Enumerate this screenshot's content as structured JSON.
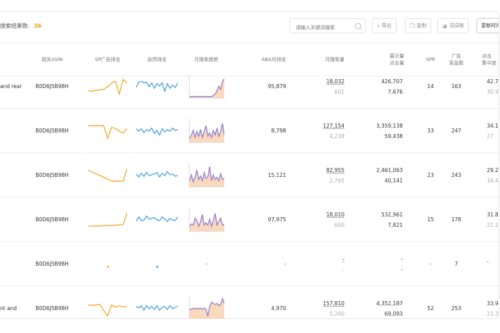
{
  "toolbar": {
    "count_label": "搜索结果数:",
    "count_value": "36",
    "search_placeholder": "请输入关键词搜索",
    "export_label": "导出",
    "copy_label": "复制",
    "keyword_root_label": "词词根",
    "update_label": "更新时间"
  },
  "columns": {
    "asin": "相关ASIN",
    "sp_rank": "SP广告排名",
    "natural_rank": "自然排名",
    "monthly_trend": "月搜索趋势",
    "aba_rank": "ABA月排名",
    "monthly_search": "月搜索量",
    "impressions_1": "展示量",
    "impressions_2": "点击量",
    "spr": "SPR",
    "ad_products_1": "广告",
    "ad_products_2": "竞品数",
    "click_share_1": "点击",
    "click_share_2": "集中度"
  },
  "colors": {
    "accent": "#f39c12",
    "sp_line": "#f5a623",
    "natural_line": "#4a9fe0",
    "trend_fill": "#fbd9bd",
    "trend_line": "#8c7fd6"
  },
  "rows": [
    {
      "name": "and rear",
      "asin": "B0D6J5B98H",
      "sp_series": [
        0.72,
        0.75,
        0.7,
        0.68,
        0.65,
        0.5,
        0.3,
        0.2,
        0.9,
        0.1,
        0.3
      ],
      "natural_series": [
        0.55,
        0.2,
        0.15,
        0.25,
        0.2,
        0.5,
        0.25,
        0.6,
        0.3,
        0.45,
        0.25,
        0.8,
        0.3,
        0.6,
        0.4,
        0.55,
        0.25
      ],
      "trend_series": [
        0.95,
        0.95,
        0.95,
        0.95,
        0.95,
        0.95,
        0.95,
        0.95,
        0.95,
        0.95,
        0.95,
        0.95,
        0.95,
        0.9,
        0.85,
        0.7,
        0.5,
        0.65,
        0.3,
        0.2
      ],
      "aba_rank": "95,879",
      "monthly_search_main": "18,032",
      "monthly_search_sub": "601",
      "impressions": "426,707",
      "clicks": "7,676",
      "spr": "14",
      "ad_products": "163",
      "click_share_a": "42.7",
      "click_share_b": "30.9"
    },
    {
      "name": "",
      "asin": "B0D6J5B98H",
      "sp_series": [
        0.2,
        0.2,
        0.2,
        0.2,
        0.2,
        0.9,
        0.3,
        0.35,
        0.5,
        0.6,
        0.35
      ],
      "natural_series": [
        0.35,
        0.5,
        0.35,
        0.6,
        0.4,
        0.5,
        0.3,
        0.65,
        0.45,
        0.75,
        0.35,
        0.55,
        0.4,
        0.5,
        0.3,
        0.45,
        0.4
      ],
      "trend_series": [
        0.85,
        0.7,
        0.5,
        0.8,
        0.55,
        0.75,
        0.45,
        0.8,
        0.55,
        0.3,
        0.75,
        0.6,
        0.8,
        0.5,
        0.7,
        0.4,
        0.75,
        0.55,
        0.2,
        0.7
      ],
      "aba_rank": "8,798",
      "monthly_search_main": "127,154",
      "monthly_search_sub": "4,238",
      "impressions": "3,359,138",
      "clicks": "59,438",
      "spr": "33",
      "ad_products": "247",
      "click_share_a": "34.1",
      "click_share_b": "27"
    },
    {
      "name": "",
      "asin": "B0D6J5B98H",
      "sp_series": [
        0.2,
        0.3,
        0.4,
        0.5,
        0.6,
        0.7,
        0.8,
        0.82,
        0.82,
        0.82,
        0.1
      ],
      "natural_series": [
        0.4,
        0.6,
        0.35,
        0.55,
        0.3,
        0.5,
        0.45,
        0.4,
        0.3,
        0.6,
        0.35,
        0.5,
        0.25,
        0.45,
        0.4,
        0.55,
        0.5
      ],
      "trend_series": [
        0.75,
        0.5,
        0.8,
        0.6,
        0.3,
        0.7,
        0.55,
        0.75,
        0.4,
        0.65,
        0.6,
        0.15,
        0.75,
        0.5,
        0.7,
        0.6,
        0.75,
        0.45,
        0.7,
        0.65
      ],
      "aba_rank": "15,121",
      "monthly_search_main": "82,955",
      "monthly_search_sub": "2,765",
      "impressions": "2,461,063",
      "clicks": "40,141",
      "spr": "23",
      "ad_products": "243",
      "click_share_a": "29.2",
      "click_share_b": "16.4"
    },
    {
      "name": "",
      "asin": "B0D6J5B98H",
      "sp_series": [
        0.85,
        0.85,
        0.84,
        0.83,
        0.82,
        0.81,
        0.8,
        0.79,
        0.78,
        0.75,
        0.1
      ],
      "natural_series": [
        0.6,
        0.3,
        0.55,
        0.5,
        0.25,
        0.45,
        0.4,
        0.35,
        0.5,
        0.55,
        0.3,
        0.45,
        0.6,
        0.4,
        0.5,
        0.55,
        0.3
      ],
      "trend_series": [
        0.8,
        0.7,
        0.75,
        0.45,
        0.55,
        0.8,
        0.6,
        0.3,
        0.75,
        0.65,
        0.75,
        0.5,
        0.8,
        0.55,
        0.25,
        0.75,
        0.6,
        0.45,
        0.75,
        0.7
      ],
      "aba_rank": "97,975",
      "monthly_search_main": "18,010",
      "monthly_search_sub": "600",
      "impressions": "532,961",
      "clicks": "7,821",
      "spr": "15",
      "ad_products": "178",
      "click_share_a": "31.8",
      "click_share_b": "22.2"
    },
    {
      "name": "",
      "asin": "B0D6J5B98H",
      "sp_series": [],
      "natural_series": [],
      "trend_series": [],
      "aba_rank": "-",
      "monthly_search_main": "-",
      "monthly_search_sub": "-",
      "impressions": "-",
      "clicks": "-",
      "spr": "-",
      "ad_products": "7",
      "click_share_a": "-",
      "click_share_b": ""
    },
    {
      "name": "nt and",
      "asin": "B0D6J5B98H",
      "sp_series": [
        0.3,
        0.3,
        0.3,
        0.25,
        0.6,
        0.9,
        0.3,
        0.4,
        0.35,
        0.38,
        0.4
      ],
      "natural_series": [
        0.35,
        0.45,
        0.3,
        0.6,
        0.3,
        0.5,
        0.35,
        0.55,
        0.3,
        0.6,
        0.4,
        0.35,
        0.55,
        0.3,
        0.5,
        0.4,
        0.35
      ],
      "trend_series": [
        0.55,
        0.55,
        0.5,
        0.55,
        0.5,
        0.55,
        0.5,
        0.55,
        0.5,
        0.55,
        0.85,
        0.45,
        0.25,
        0.3,
        0.35,
        0.3,
        0.4,
        0.35,
        0.1,
        0.3
      ],
      "aba_rank": "4,970",
      "monthly_search_main": "157,810",
      "monthly_search_sub": "5,260",
      "impressions": "4,352,187",
      "clicks": "69,093",
      "spr": "52",
      "ad_products": "253",
      "click_share_a": "33.9",
      "click_share_b": "21.3"
    }
  ]
}
